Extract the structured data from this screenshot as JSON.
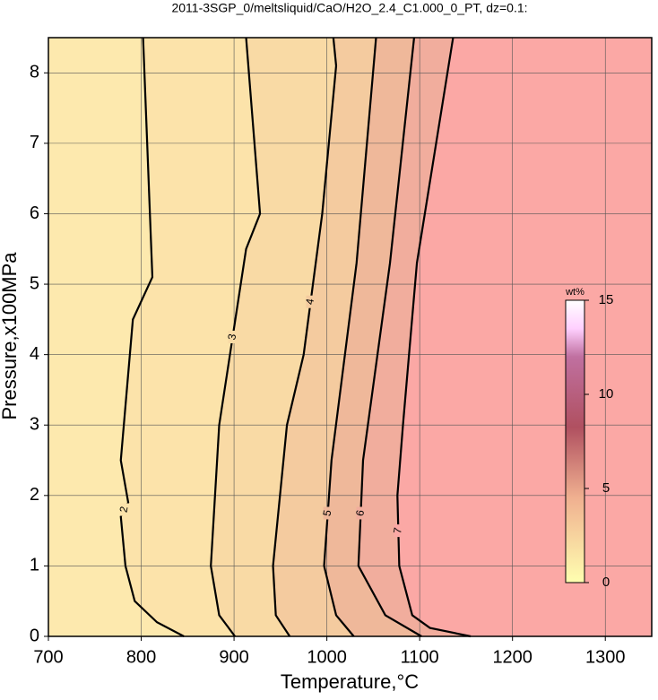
{
  "chart_data": {
    "type": "contour",
    "title": "2011-3SGP_0/meltsliquid/CaO/H2O_2.4_C1.000_0_PT, dz=0.1:",
    "xlabel": "Temperature,°C",
    "ylabel": "Pressure,x100MPa",
    "xlim": [
      700,
      1350
    ],
    "ylim": [
      0,
      8.5
    ],
    "xticks": [
      700,
      800,
      900,
      1000,
      1100,
      1200,
      1300
    ],
    "yticks": [
      0,
      1,
      2,
      3,
      4,
      5,
      6,
      7,
      8
    ],
    "grid": true,
    "background": "#fde9ae",
    "contours": [
      {
        "level": 2,
        "fill": "#fce3aa",
        "x": [
          802,
          812,
          791,
          778,
          786,
          778,
          783,
          793,
          817,
          846
        ],
        "y": [
          8.5,
          5.1,
          4.5,
          2.5,
          1.9,
          1.7,
          1.0,
          0.5,
          0.2,
          0
        ]
      },
      {
        "level": 3,
        "fill": "#f9daa5",
        "x": [
          913,
          928,
          913,
          884,
          875,
          884,
          901
        ],
        "y": [
          8.5,
          6.0,
          5.5,
          3.0,
          1.0,
          0.3,
          0
        ]
      },
      {
        "level": 4,
        "fill": "#f4cb9f",
        "x": [
          1007,
          1010,
          995,
          990,
          975,
          957,
          942,
          945,
          960
        ],
        "y": [
          8.5,
          8.1,
          6.0,
          5.5,
          4.0,
          3.0,
          1.0,
          0.3,
          0
        ]
      },
      {
        "level": 5,
        "fill": "#efb89a",
        "x": [
          1053,
          1032,
          1005,
          997,
          1010,
          1029
        ],
        "y": [
          8.5,
          5.3,
          2.5,
          1.0,
          0.3,
          0
        ]
      },
      {
        "level": 6,
        "fill": "#f1ad9d",
        "x": [
          1094,
          1068,
          1039,
          1034,
          1063,
          1102
        ],
        "y": [
          8.5,
          5.3,
          2.5,
          1.0,
          0.3,
          0
        ]
      },
      {
        "level": 7,
        "fill": "#fba8a5",
        "x": [
          1136,
          1097,
          1082,
          1076,
          1078,
          1092,
          1111,
          1155
        ],
        "y": [
          8.5,
          5.3,
          3.0,
          2.0,
          1.0,
          0.3,
          0.12,
          0
        ]
      }
    ],
    "colorbar": {
      "label": "wt%",
      "lim": [
        0,
        15
      ],
      "ticks": [
        0,
        5,
        10,
        15
      ]
    }
  }
}
